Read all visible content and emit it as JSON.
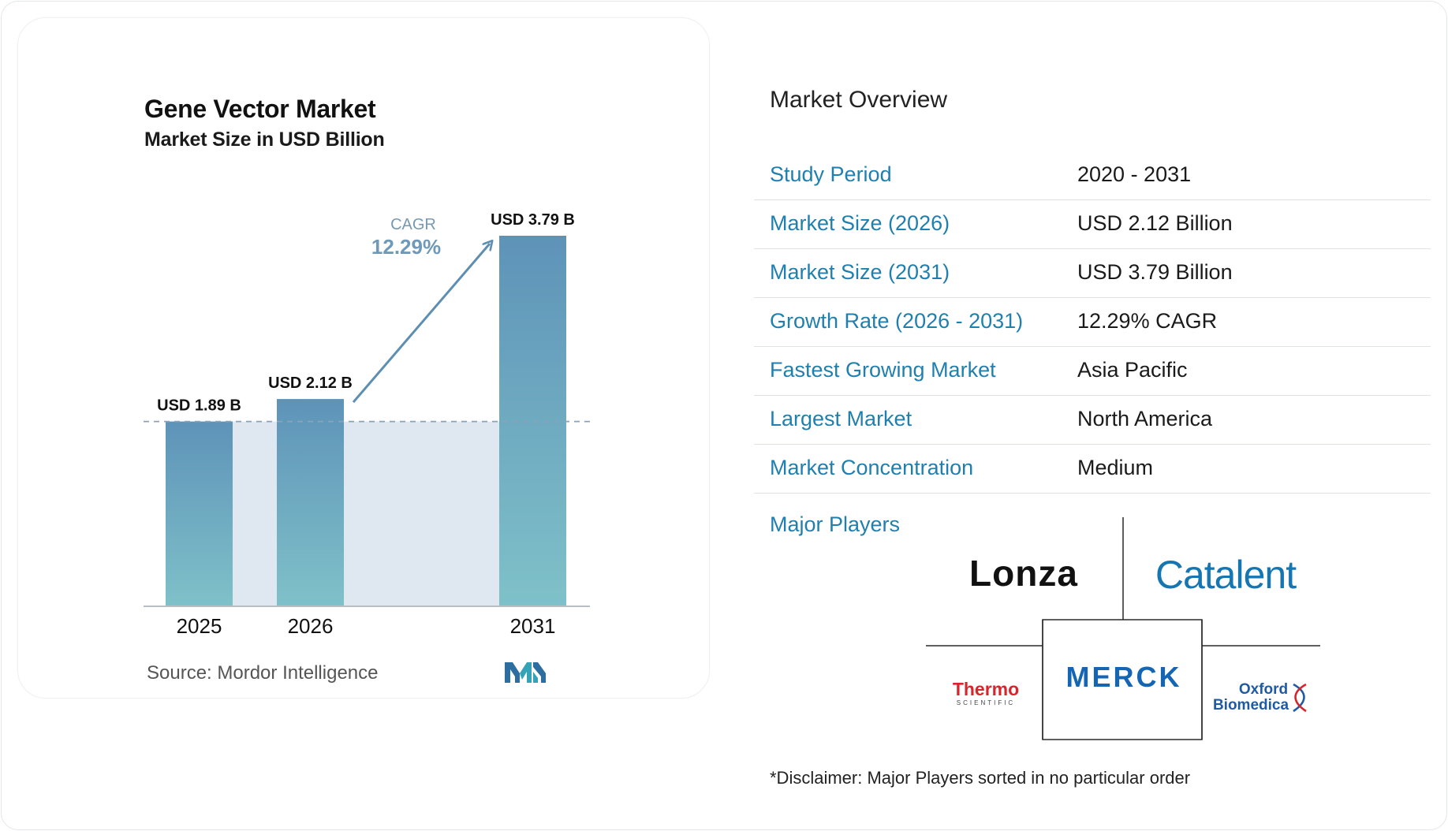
{
  "chart_data": {
    "type": "bar",
    "title": "Gene Vector Market",
    "subtitle": "Market Size in USD Billion",
    "categories": [
      "2025",
      "2026",
      "2031"
    ],
    "values": [
      1.89,
      2.12,
      3.79
    ],
    "value_labels": [
      "USD 1.89 B",
      "USD 2.12 B",
      "USD 3.79 B"
    ],
    "ylim": [
      0,
      3.79
    ],
    "cagr_label": "CAGR",
    "cagr_value": "12.29%",
    "bar_color_top": "#5e93b8",
    "bar_color_bottom": "#7fc1c9",
    "shade_color": "#dfe8f1",
    "arrow_color": "#5e8fb3"
  },
  "source": "Source:  Mordor Intelligence",
  "overview": {
    "title": "Market Overview",
    "rows": [
      {
        "label": "Study Period",
        "value": "2020 - 2031"
      },
      {
        "label": "Market Size (2026)",
        "value": "USD 2.12 Billion"
      },
      {
        "label": "Market Size (2031)",
        "value": "USD 3.79 Billion"
      },
      {
        "label": "Growth Rate (2026 - 2031)",
        "value": "12.29% CAGR"
      },
      {
        "label": "Fastest Growing Market",
        "value": "Asia Pacific"
      },
      {
        "label": "Largest Market",
        "value": "North America"
      },
      {
        "label": "Market Concentration",
        "value": "Medium"
      }
    ],
    "players_label": "Major Players",
    "players": {
      "lonza": "Lonza",
      "catalent": "Catalent",
      "thermo": "Thermo",
      "thermo_sub": "SCIENTIFIC",
      "merck": "MERCK",
      "oxford_1": "Oxford",
      "oxford_2": "Biomedica"
    },
    "disclaimer": "*Disclaimer: Major Players sorted in no particular order"
  },
  "colors": {
    "accent": "#1f7fae",
    "catalent": "#1676b2",
    "merck": "#1565b5",
    "thermo": "#d7262b",
    "oxford": "#1f5ba4"
  },
  "icons": {
    "mordor_logo": "mordor-intelligence-logo"
  }
}
